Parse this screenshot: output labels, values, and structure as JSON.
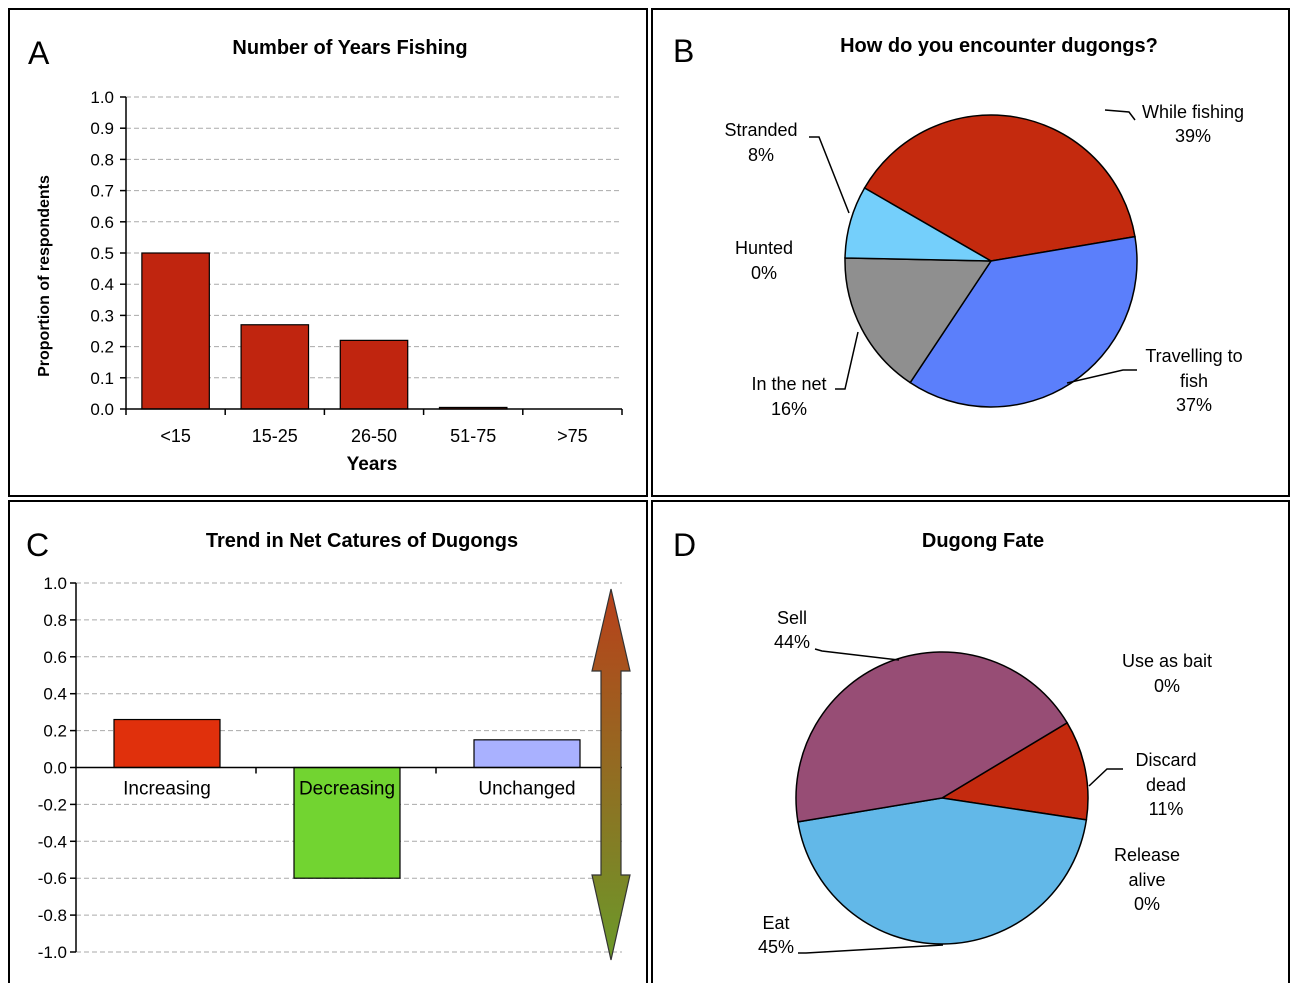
{
  "chart_data": [
    {
      "panel_letter": "A",
      "type": "bar",
      "title": "Number of Years Fishing",
      "xlabel": "Years",
      "ylabel": "Proportion of respondents",
      "categories": [
        "<15",
        "15-25",
        "26-50",
        "51-75",
        ">75"
      ],
      "values": [
        0.5,
        0.27,
        0.22,
        0.005,
        0.0
      ],
      "ylim": [
        0,
        1.0
      ],
      "yticks": [
        "0.0",
        "0.1",
        "0.2",
        "0.3",
        "0.4",
        "0.5",
        "0.6",
        "0.7",
        "0.8",
        "0.9",
        "1.0"
      ],
      "grid": true,
      "colors": {
        "bar": "#c0250f",
        "grid": "#aaaaaa"
      }
    },
    {
      "panel_letter": "B",
      "type": "pie",
      "title": "How do you encounter dugongs?",
      "slices": [
        {
          "label": "While fishing",
          "value": 39,
          "text": "39%",
          "color": "#c42a0e"
        },
        {
          "label": "Travelling to fish",
          "label_lines": [
            "Travelling to",
            "fish"
          ],
          "value": 37,
          "text": "37%",
          "color": "#5b7ffb"
        },
        {
          "label": "In the net",
          "value": 16,
          "text": "16%",
          "color": "#8f8f8f"
        },
        {
          "label": "Hunted",
          "value": 0,
          "text": "0%",
          "color": "#cccccc"
        },
        {
          "label": "Stranded",
          "value": 8,
          "text": "8%",
          "color": "#74cffb"
        }
      ]
    },
    {
      "panel_letter": "C",
      "type": "bar",
      "title": "Trend in Net Catures of Dugongs",
      "categories": [
        "Increasing",
        "Decreasing",
        "Unchanged"
      ],
      "values": [
        0.26,
        -0.6,
        0.15
      ],
      "colors": [
        "#e0300c",
        "#72d431",
        "#a9b1ff"
      ],
      "ylim": [
        -1.0,
        1.0
      ],
      "yticks": [
        "-1.0",
        "-0.8",
        "-0.6",
        "-0.4",
        "-0.2",
        "0.0",
        "0.2",
        "0.4",
        "0.6",
        "0.8",
        "1.0"
      ],
      "grid": true,
      "arrow_colors": {
        "top": "#b8401a",
        "bottom": "#6b9a2a"
      }
    },
    {
      "panel_letter": "D",
      "type": "pie",
      "title": "Dugong Fate",
      "slices": [
        {
          "label": "Discard dead",
          "label_lines": [
            "Discard",
            "dead"
          ],
          "value": 11,
          "text": "11%",
          "color": "#c42a0e"
        },
        {
          "label": "Release alive",
          "label_lines": [
            "Release",
            "alive"
          ],
          "value": 0,
          "text": "0%",
          "color": "#cccccc"
        },
        {
          "label": "Eat",
          "value": 45,
          "text": "45%",
          "color": "#62b8e8"
        },
        {
          "label": "Sell",
          "value": 44,
          "text": "44%",
          "color": "#974d75"
        },
        {
          "label": "Use as bait",
          "value": 0,
          "text": "0%",
          "color": "#cccccc"
        }
      ]
    }
  ]
}
